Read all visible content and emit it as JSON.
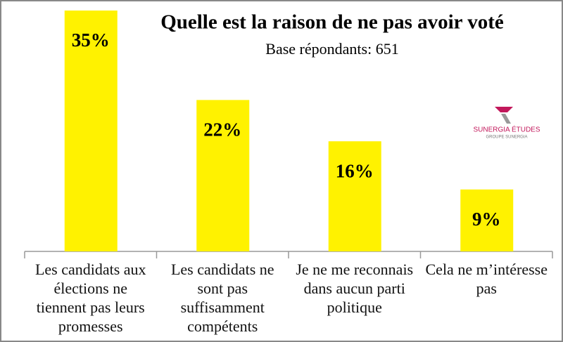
{
  "chart_data": {
    "type": "bar",
    "title": "Quelle est la raison de ne pas avoir voté",
    "subtitle": "Base répondants: 651",
    "categories": [
      "Les candidats aux élections ne tiennent pas leurs promesses",
      "Les candidats ne sont pas suffisamment compétents",
      "Je ne me reconnais dans aucun parti politique",
      "Cela ne m’intéresse pas"
    ],
    "values": [
      35,
      22,
      16,
      9
    ],
    "value_labels": [
      "35%",
      "22%",
      "16%",
      "9%"
    ],
    "color": "#fff200",
    "ylim": [
      0,
      35
    ],
    "logo": {
      "name": "SUNERGIA ÉTUDES",
      "tagline": "GROUPE SUNERGIA"
    }
  }
}
